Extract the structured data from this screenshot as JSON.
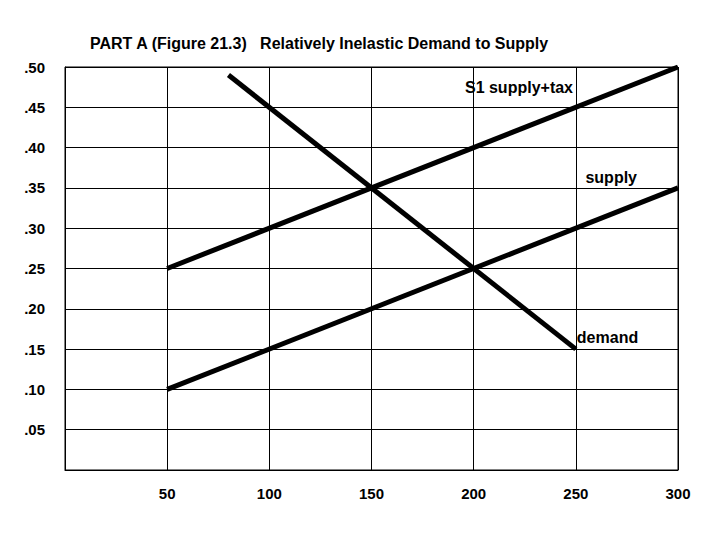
{
  "chart_data": {
    "type": "line",
    "title": "PART A (Figure 21.3)   Relatively Inelastic Demand to Supply",
    "xlim": [
      0,
      300
    ],
    "xticks": [
      50,
      100,
      150,
      200,
      250,
      300
    ],
    "ylim": [
      0,
      0.5
    ],
    "yticks": [
      {
        "value": 0.05,
        "label": ".05"
      },
      {
        "value": 0.1,
        "label": ".10"
      },
      {
        "value": 0.15,
        "label": ".15"
      },
      {
        "value": 0.2,
        "label": ".20"
      },
      {
        "value": 0.25,
        "label": ".25"
      },
      {
        "value": 0.3,
        "label": ".30"
      },
      {
        "value": 0.35,
        "label": ".35"
      },
      {
        "value": 0.4,
        "label": ".40"
      },
      {
        "value": 0.45,
        "label": ".45"
      },
      {
        "value": 0.5,
        "label": ".50"
      }
    ],
    "grid": true,
    "series": [
      {
        "name": "S1 supply+tax",
        "color": "#000000",
        "x": [
          50,
          300
        ],
        "values": [
          0.25,
          0.5
        ]
      },
      {
        "name": "supply",
        "color": "#000000",
        "x": [
          50,
          300
        ],
        "values": [
          0.1,
          0.35
        ]
      },
      {
        "name": "demand",
        "color": "#000000",
        "x": [
          80,
          250
        ],
        "values": [
          0.49,
          0.15
        ]
      }
    ]
  }
}
